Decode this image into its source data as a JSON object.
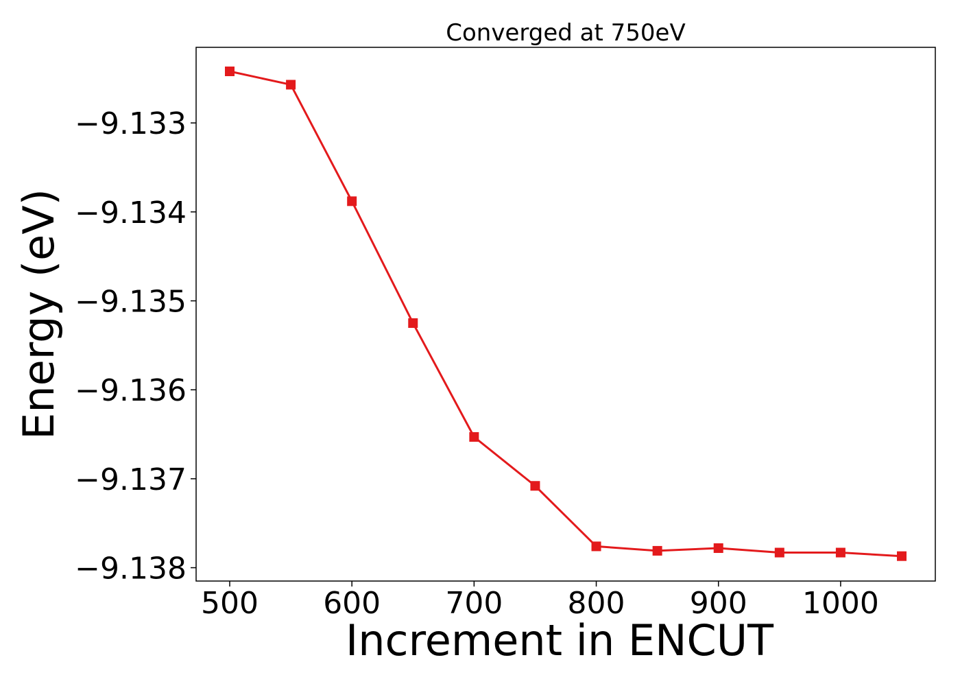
{
  "chart_data": {
    "type": "line",
    "title": "Converged at 750eV",
    "xlabel": "Increment in ENCUT",
    "ylabel": "Energy (eV)",
    "x": [
      500,
      550,
      600,
      650,
      700,
      750,
      800,
      850,
      900,
      950,
      1000,
      1050
    ],
    "series": [
      {
        "values": [
          -9.13242,
          -9.13257,
          -9.13388,
          -9.13525,
          -9.13653,
          -9.13708,
          -9.13776,
          -9.13781,
          -9.13778,
          -9.13783,
          -9.13783,
          -9.13787
        ],
        "color": "#e31a1c",
        "marker": "square"
      }
    ],
    "xticks": [
      500,
      600,
      700,
      800,
      900,
      1000
    ],
    "xtick_labels": [
      "500",
      "600",
      "700",
      "800",
      "900",
      "1000"
    ],
    "yticks": [
      -9.133,
      -9.134,
      -9.135,
      -9.136,
      -9.137,
      -9.138
    ],
    "ytick_labels": [
      "−9.133",
      "−9.134",
      "−9.135",
      "−9.136",
      "−9.137",
      "−9.138"
    ],
    "xlim": [
      472.5,
      1077.5
    ],
    "ylim": [
      -9.13815,
      -9.13215
    ],
    "grid": false
  }
}
